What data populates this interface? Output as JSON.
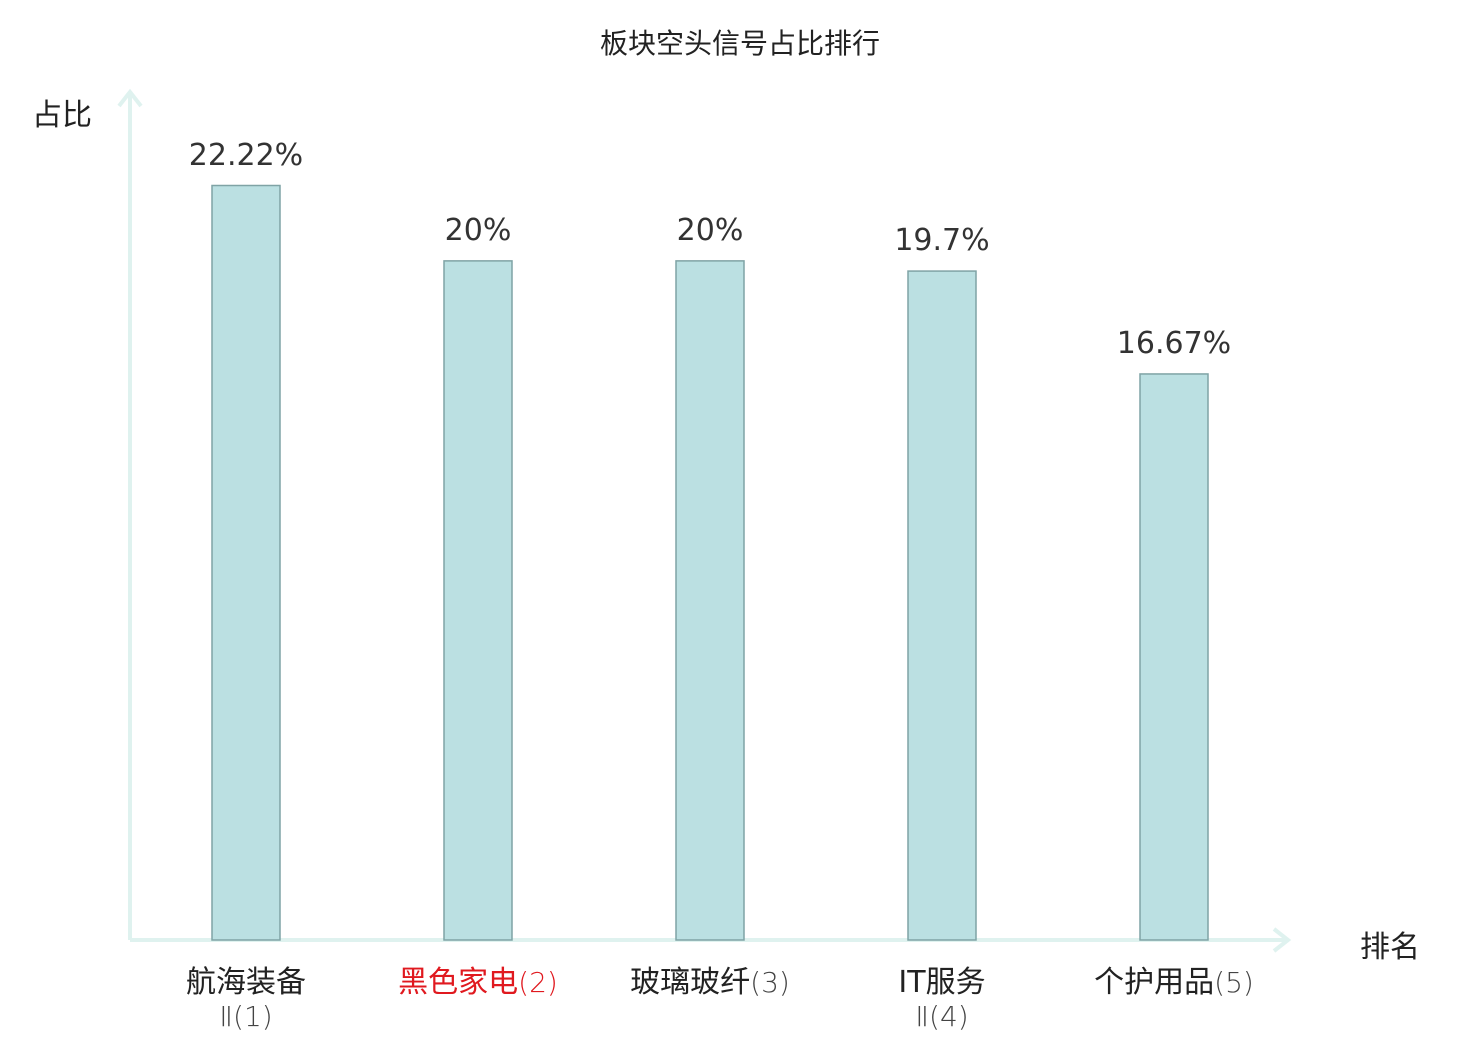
{
  "chart_data": {
    "type": "bar",
    "title": "板块空头信号占比排行",
    "ylabel": "占比",
    "xlabel": "排名",
    "ylim": [
      0,
      25
    ],
    "grid": false,
    "categories": [
      {
        "name": "航海装备",
        "sub": "Ⅱ",
        "rank": "(1)",
        "highlight": false
      },
      {
        "name": "黑色家电",
        "sub": "",
        "rank": "(2)",
        "highlight": true
      },
      {
        "name": "玻璃玻纤",
        "sub": "",
        "rank": "(3)",
        "highlight": false
      },
      {
        "name": "IT服务",
        "sub": "Ⅱ",
        "rank": "(4)",
        "highlight": false
      },
      {
        "name": "个护用品",
        "sub": "",
        "rank": "(5)",
        "highlight": false
      }
    ],
    "values": [
      22.22,
      20,
      20,
      19.7,
      16.67
    ],
    "value_labels": [
      "22.22%",
      "20%",
      "20%",
      "19.7%",
      "16.67%"
    ],
    "colors": {
      "bar_fill": "#bbe0e2",
      "bar_stroke": "#7fa3a5",
      "axis": "#dff2ef",
      "highlight_text": "#e0191f"
    }
  }
}
